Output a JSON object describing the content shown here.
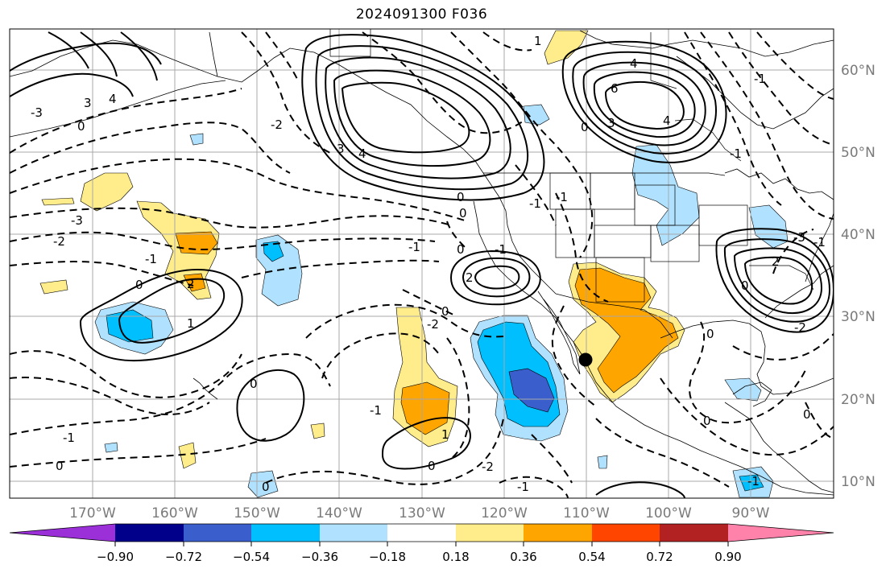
{
  "title": "2024091300 F036",
  "longitude_labels": [
    "170°W",
    "160°W",
    "150°W",
    "140°W",
    "130°W",
    "120°W",
    "110°W",
    "100°W",
    "90°W"
  ],
  "latitude_labels": [
    "60°N",
    "50°N",
    "40°N",
    "30°N",
    "20°N",
    "10°N"
  ],
  "colorbar": {
    "ticks": [
      "−0.90",
      "−0.72",
      "−0.54",
      "−0.36",
      "−0.18",
      "0.18",
      "0.36",
      "0.54",
      "0.72",
      "0.90"
    ],
    "colors": [
      "#9b30d9",
      "#00008b",
      "#3a5fcd",
      "#00bfff",
      "#b0e2ff",
      "#ffffff",
      "#ffec8b",
      "#ffa500",
      "#ff4500",
      "#b22222",
      "#ff82ab"
    ]
  },
  "contour_labels": [
    {
      "id": "c1",
      "text": "1"
    },
    {
      "id": "c2",
      "text": "3"
    },
    {
      "id": "c3",
      "text": "4"
    },
    {
      "id": "c4",
      "text": "-2"
    },
    {
      "id": "c5",
      "text": "3"
    },
    {
      "id": "c6",
      "text": "4"
    },
    {
      "id": "c7",
      "text": "-3"
    },
    {
      "id": "c8",
      "text": "0"
    },
    {
      "id": "c9",
      "text": "-3"
    },
    {
      "id": "c10",
      "text": "-2"
    },
    {
      "id": "c11",
      "text": "-1"
    },
    {
      "id": "c12",
      "text": "0"
    },
    {
      "id": "c13",
      "text": "1"
    },
    {
      "id": "c14",
      "text": "2"
    },
    {
      "id": "c15",
      "text": "0"
    },
    {
      "id": "c16",
      "text": "-1"
    },
    {
      "id": "c17",
      "text": "0"
    },
    {
      "id": "c18",
      "text": "-1"
    },
    {
      "id": "c19",
      "text": "2"
    },
    {
      "id": "c20",
      "text": "0"
    },
    {
      "id": "c21",
      "text": "0"
    },
    {
      "id": "c22",
      "text": "-1"
    },
    {
      "id": "c23",
      "text": "0"
    },
    {
      "id": "c24",
      "text": "-2"
    },
    {
      "id": "c25",
      "text": "-1"
    },
    {
      "id": "c26",
      "text": "1"
    },
    {
      "id": "c27",
      "text": "0"
    },
    {
      "id": "c28",
      "text": "0"
    },
    {
      "id": "c29",
      "text": "-1"
    },
    {
      "id": "c30",
      "text": "-1"
    },
    {
      "id": "c31",
      "text": "0"
    },
    {
      "id": "c32",
      "text": "-2"
    },
    {
      "id": "c33",
      "text": "0"
    },
    {
      "id": "c34",
      "text": "-1"
    },
    {
      "id": "c35",
      "text": "-1"
    },
    {
      "id": "c36",
      "text": "4"
    },
    {
      "id": "c37",
      "text": "6"
    },
    {
      "id": "c38",
      "text": "4"
    },
    {
      "id": "c39",
      "text": "3"
    },
    {
      "id": "c40",
      "text": "0"
    },
    {
      "id": "c41",
      "text": "-1"
    },
    {
      "id": "c42",
      "text": "0"
    },
    {
      "id": "c43",
      "text": "-1"
    },
    {
      "id": "c44",
      "text": "2"
    },
    {
      "id": "c45",
      "text": "0"
    },
    {
      "id": "c46",
      "text": "-3"
    },
    {
      "id": "c47",
      "text": "-2"
    },
    {
      "id": "c48",
      "text": "0"
    },
    {
      "id": "c49",
      "text": "-1"
    }
  ]
}
